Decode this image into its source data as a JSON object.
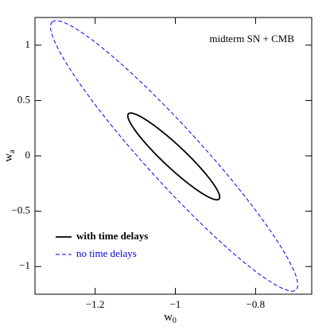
{
  "chart_data": {
    "type": "ellipse",
    "annotation": "midterm SN + CMB",
    "xlabel": "w",
    "xlabel_sub": "0",
    "ylabel": "w",
    "ylabel_sub": "a",
    "xlim": [
      -1.35,
      -0.66
    ],
    "ylim": [
      -1.25,
      1.25
    ],
    "xticks": [
      {
        "value": -1.2,
        "label": "−1.2"
      },
      {
        "value": -1,
        "label": "−1"
      },
      {
        "value": -0.8,
        "label": "−0.8"
      }
    ],
    "yticks": [
      {
        "value": -1,
        "label": "−1"
      },
      {
        "value": -0.5,
        "label": "−0.5"
      },
      0,
      0.5,
      1
    ],
    "legend": "lower left",
    "series": [
      {
        "name": "with time delays",
        "color": "#000000",
        "dash": false,
        "center": [
          -1.004,
          -0.005
        ],
        "axis1": [
          -0.113,
          0.385
        ],
        "axis2": [
          0.019,
          0.073
        ]
      },
      {
        "name": "no time delays",
        "color": "#0000ff",
        "dash": true,
        "center": [
          -1.003,
          0.0
        ],
        "axis1": [
          -0.304,
          1.21
        ],
        "axis2": [
          0.051,
          0.169
        ]
      }
    ]
  }
}
